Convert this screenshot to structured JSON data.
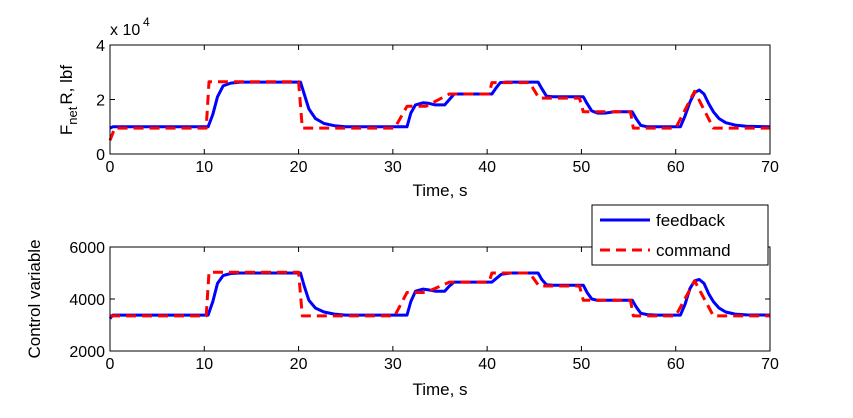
{
  "chart_data": [
    {
      "type": "line",
      "exponent_label": "x 10",
      "exponent_power": "4",
      "ylabel_main": "F",
      "ylabel_sub": "net",
      "ylabel_rest": "R, lbf",
      "xlabel": "Time, s",
      "xlim": [
        0,
        70
      ],
      "ylim": [
        0,
        4
      ],
      "xticks": [
        0,
        10,
        20,
        30,
        40,
        50,
        60,
        70
      ],
      "yticks": [
        0,
        2,
        4
      ],
      "grid": false,
      "series": [
        {
          "name": "feedback",
          "color": "#0000ff",
          "style": "solid",
          "x": [
            0,
            0.3,
            10.4,
            10.9,
            11.4,
            12,
            12.8,
            13.8,
            15,
            20.2,
            20.6,
            21.1,
            21.8,
            22.7,
            23.8,
            25,
            26,
            31.5,
            31.9,
            32.4,
            33.2,
            33.8,
            34.5,
            35.5,
            36,
            36.5,
            40.5,
            40.9,
            41.4,
            42,
            45.4,
            45.8,
            46.3,
            47,
            50.2,
            50.6,
            51.1,
            51.7,
            52.5,
            53.5,
            55.4,
            55.8,
            56.3,
            57,
            58,
            60.5,
            61,
            61.5,
            62,
            62.5,
            63,
            63.5,
            64,
            64.6,
            65.3,
            66.3,
            67.5,
            70
          ],
          "y": [
            0.95,
            1.0,
            1.0,
            1.45,
            2.1,
            2.5,
            2.6,
            2.64,
            2.64,
            2.64,
            2.2,
            1.65,
            1.3,
            1.12,
            1.04,
            1.0,
            1.0,
            1.0,
            1.5,
            1.8,
            1.88,
            1.86,
            1.8,
            1.8,
            2.0,
            2.2,
            2.2,
            2.4,
            2.62,
            2.64,
            2.64,
            2.4,
            2.12,
            2.1,
            2.1,
            1.85,
            1.58,
            1.5,
            1.5,
            1.55,
            1.55,
            1.3,
            1.05,
            1.0,
            1.0,
            1.0,
            1.4,
            1.9,
            2.25,
            2.35,
            2.2,
            1.85,
            1.55,
            1.3,
            1.15,
            1.06,
            1.02,
            1.0
          ]
        },
        {
          "name": "command",
          "color": "#ff0000",
          "style": "dashed",
          "x": [
            0,
            0.5,
            10.2,
            10.5,
            20,
            20.4,
            30.2,
            31.5,
            33.5,
            36,
            40.2,
            40.5,
            44.5,
            45.5,
            49.8,
            50.2,
            55.2,
            55.5,
            60,
            62,
            64,
            70
          ],
          "y": [
            0.5,
            0.95,
            0.95,
            2.65,
            2.65,
            0.95,
            0.95,
            1.75,
            1.75,
            2.2,
            2.2,
            2.62,
            2.62,
            2.05,
            2.05,
            1.55,
            1.55,
            0.95,
            0.95,
            2.3,
            0.95,
            0.95
          ]
        }
      ]
    },
    {
      "type": "line",
      "ylabel": "Control variable",
      "xlabel": "Time, s",
      "xlim": [
        0,
        70
      ],
      "ylim": [
        2000,
        6000
      ],
      "xticks": [
        0,
        10,
        20,
        30,
        40,
        50,
        60,
        70
      ],
      "yticks": [
        2000,
        4000,
        6000
      ],
      "grid": false,
      "legend": {
        "placement": "top-right",
        "entries": [
          {
            "label": "feedback",
            "color": "#0000ff",
            "style": "solid"
          },
          {
            "label": "command",
            "color": "#ff0000",
            "style": "dashed"
          }
        ]
      },
      "series": [
        {
          "name": "feedback",
          "color": "#0000ff",
          "style": "solid",
          "x": [
            0,
            0.3,
            10.4,
            10.9,
            11.4,
            12,
            12.8,
            13.8,
            15,
            20.2,
            20.6,
            21.1,
            21.8,
            22.7,
            23.8,
            25,
            26,
            31.5,
            31.9,
            32.4,
            33.2,
            33.8,
            34.5,
            35.5,
            36,
            36.5,
            40.5,
            41,
            41.5,
            42.5,
            45.4,
            45.8,
            46.3,
            47,
            50.2,
            50.6,
            51.1,
            51.7,
            52.5,
            53.5,
            55.4,
            55.8,
            56.3,
            57,
            58,
            60.5,
            61,
            61.5,
            62,
            62.5,
            63,
            63.5,
            64,
            64.6,
            65.3,
            66.3,
            67.5,
            70
          ],
          "y": [
            3250,
            3380,
            3380,
            3900,
            4600,
            4900,
            4980,
            5000,
            5000,
            5000,
            4500,
            3950,
            3650,
            3500,
            3420,
            3380,
            3380,
            3380,
            3900,
            4300,
            4380,
            4350,
            4300,
            4300,
            4500,
            4650,
            4650,
            4800,
            4950,
            5000,
            5000,
            4750,
            4550,
            4530,
            4530,
            4250,
            4000,
            3950,
            3950,
            3950,
            3950,
            3700,
            3450,
            3400,
            3380,
            3380,
            3800,
            4400,
            4700,
            4750,
            4600,
            4200,
            3900,
            3650,
            3500,
            3420,
            3390,
            3380
          ]
        },
        {
          "name": "command",
          "color": "#ff0000",
          "style": "dashed",
          "x": [
            0,
            0.5,
            10.2,
            10.5,
            20,
            20.4,
            30.2,
            31.5,
            33.5,
            36,
            40.2,
            40.5,
            44.5,
            45.5,
            49.8,
            50.2,
            55.2,
            55.5,
            60,
            62,
            64,
            70
          ],
          "y": [
            3350,
            3350,
            3350,
            5030,
            5030,
            3350,
            3350,
            4250,
            4250,
            4650,
            4650,
            5000,
            5000,
            4500,
            4500,
            3950,
            3950,
            3350,
            3350,
            4700,
            3350,
            3350
          ]
        }
      ]
    }
  ]
}
